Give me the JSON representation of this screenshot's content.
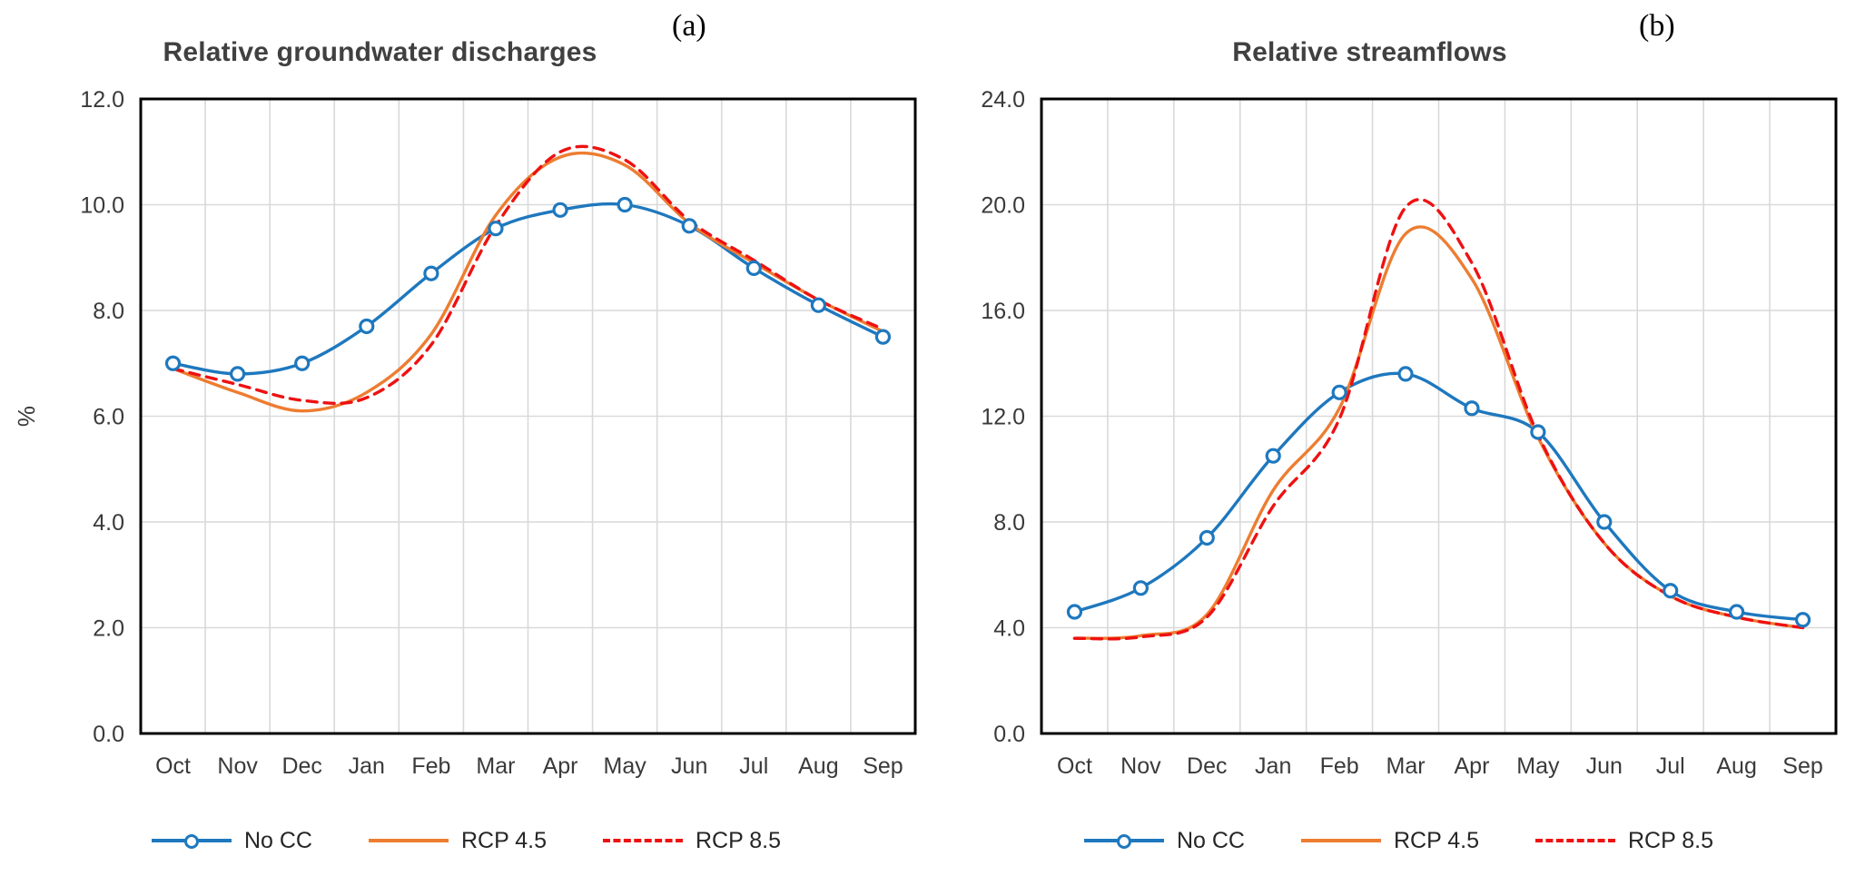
{
  "page_background": "#ffffff",
  "colors": {
    "no_cc": "#1E78BE",
    "rcp45": "#ED7D31",
    "rcp85": "#EE1111",
    "grid": "#D9D9D9",
    "axis": "#000000",
    "tick_text": "#3A3A3A",
    "title_text": "#404040"
  },
  "chart_data": [
    {
      "type": "line",
      "title": "Relative groundwater discharges",
      "panel_label": "(a)",
      "categories": [
        "Oct",
        "Nov",
        "Dec",
        "Jan",
        "Feb",
        "Mar",
        "Apr",
        "May",
        "Jun",
        "Jul",
        "Aug",
        "Sep"
      ],
      "xlabel": "",
      "ylabel": "%",
      "ylim": [
        0,
        12
      ],
      "y_tick_step": 2,
      "y_tick_labels": [
        "0.0",
        "2.0",
        "4.0",
        "6.0",
        "8.0",
        "10.0",
        "12.0"
      ],
      "grid": true,
      "legend_position": "bottom",
      "series": [
        {
          "name": "No CC",
          "color": "#1E78BE",
          "style": "solid",
          "marker": "circle",
          "values": [
            7.0,
            6.8,
            7.0,
            7.7,
            8.7,
            9.55,
            9.9,
            10.0,
            9.6,
            8.8,
            8.1,
            7.5
          ]
        },
        {
          "name": "RCP 4.5",
          "color": "#ED7D31",
          "style": "solid",
          "marker": "none",
          "values": [
            6.9,
            6.45,
            6.1,
            6.45,
            7.55,
            9.8,
            10.9,
            10.75,
            9.65,
            8.9,
            8.2,
            7.6
          ]
        },
        {
          "name": "RCP 8.5",
          "color": "#EE1111",
          "style": "dashed",
          "marker": "none",
          "values": [
            6.9,
            6.6,
            6.3,
            6.35,
            7.35,
            9.6,
            11.0,
            10.85,
            9.7,
            8.95,
            8.2,
            7.65
          ]
        }
      ]
    },
    {
      "type": "line",
      "title": "Relative streamflows",
      "panel_label": "(b)",
      "categories": [
        "Oct",
        "Nov",
        "Dec",
        "Jan",
        "Feb",
        "Mar",
        "Apr",
        "May",
        "Jun",
        "Jul",
        "Aug",
        "Sep"
      ],
      "xlabel": "",
      "ylabel": "",
      "ylim": [
        0,
        24
      ],
      "y_tick_step": 4,
      "y_tick_labels": [
        "0.0",
        "4.0",
        "8.0",
        "12.0",
        "16.0",
        "20.0",
        "24.0"
      ],
      "grid": true,
      "legend_position": "bottom",
      "series": [
        {
          "name": "No CC",
          "color": "#1E78BE",
          "style": "solid",
          "marker": "circle",
          "values": [
            4.6,
            5.5,
            7.4,
            10.5,
            12.9,
            13.6,
            12.3,
            11.4,
            8.0,
            5.4,
            4.6,
            4.3
          ]
        },
        {
          "name": "RCP 4.5",
          "color": "#ED7D31",
          "style": "solid",
          "marker": "none",
          "values": [
            3.6,
            3.7,
            4.5,
            9.2,
            12.3,
            18.9,
            17.2,
            11.2,
            7.2,
            5.2,
            4.4,
            4.0
          ]
        },
        {
          "name": "RCP 8.5",
          "color": "#EE1111",
          "style": "dashed",
          "marker": "none",
          "values": [
            3.6,
            3.65,
            4.4,
            8.6,
            11.9,
            19.9,
            17.8,
            11.3,
            7.2,
            5.2,
            4.4,
            4.0
          ]
        }
      ]
    }
  ]
}
